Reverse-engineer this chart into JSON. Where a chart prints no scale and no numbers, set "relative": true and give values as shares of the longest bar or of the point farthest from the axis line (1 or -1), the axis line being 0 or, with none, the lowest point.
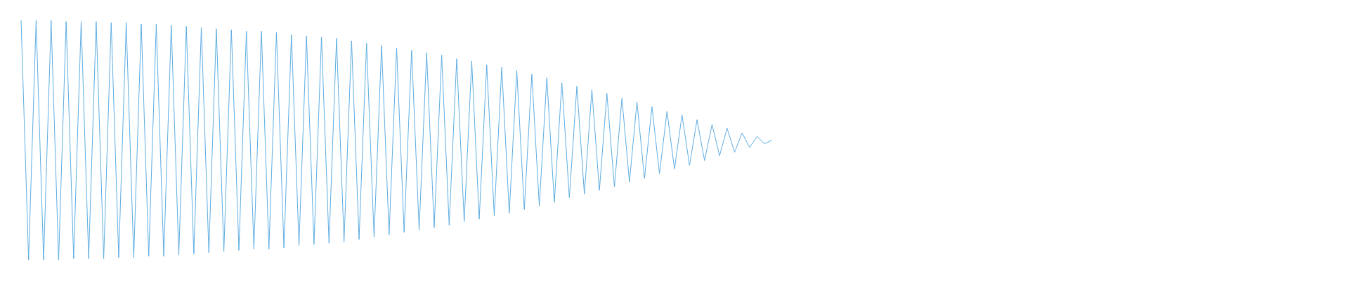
{
  "chart_data": {
    "type": "line",
    "relative": true,
    "color": "#5dade2",
    "categories": [
      null,
      null,
      null,
      null,
      null,
      null,
      null,
      null,
      null,
      null,
      null,
      null,
      null,
      null,
      null,
      null,
      null,
      null,
      null,
      null,
      null,
      null,
      null,
      null,
      null,
      null,
      null,
      null,
      null,
      null,
      null,
      null,
      null,
      null,
      null,
      null,
      null,
      null,
      null,
      null,
      null,
      null,
      null,
      null,
      null,
      null,
      null,
      null,
      null,
      null,
      null,
      null,
      null,
      null,
      null,
      null,
      null,
      null,
      null,
      null,
      null,
      null,
      null,
      null,
      null,
      null,
      null,
      null,
      null,
      null,
      null,
      null,
      null,
      null,
      null,
      null,
      null,
      null,
      null,
      null,
      null,
      null,
      null,
      null,
      null,
      null,
      null,
      null,
      null,
      null,
      null,
      null,
      null,
      null,
      null,
      null,
      null,
      null,
      null,
      null,
      null,
      null,
      null,
      null,
      null,
      null,
      null,
      null,
      null,
      null,
      null,
      null,
      null,
      null,
      null,
      null,
      null,
      null,
      null,
      null,
      null,
      null,
      null,
      null,
      null,
      null,
      null,
      null,
      null,
      null,
      null,
      null,
      null,
      null,
      null,
      null,
      null,
      null,
      null,
      null,
      null,
      null,
      null,
      null,
      null,
      null,
      null,
      null,
      null,
      null,
      null,
      null,
      null,
      null,
      null,
      null,
      null,
      null,
      null,
      null,
      null,
      null,
      null,
      null,
      null,
      null,
      null,
      null,
      null,
      null,
      null,
      null,
      null,
      null,
      null
    ],
    "values": [
      1.0,
      0.0,
      1.0,
      0.0,
      1.0,
      0.0,
      0.995,
      0.005,
      0.995,
      0.005,
      0.995,
      0.005,
      0.99,
      0.01,
      0.99,
      0.01,
      0.985,
      0.015,
      0.985,
      0.015,
      0.98,
      0.02,
      0.975,
      0.025,
      0.97,
      0.03,
      0.965,
      0.035,
      0.96,
      0.04,
      0.955,
      0.045,
      0.955,
      0.045,
      0.95,
      0.05,
      0.94,
      0.06,
      0.935,
      0.065,
      0.93,
      0.07,
      0.925,
      0.075,
      0.915,
      0.085,
      0.905,
      0.095,
      0.895,
      0.105,
      0.885,
      0.115,
      0.875,
      0.125,
      0.865,
      0.135,
      0.855,
      0.145,
      0.84,
      0.16,
      0.83,
      0.17,
      0.815,
      0.185,
      0.805,
      0.195,
      0.79,
      0.21,
      0.775,
      0.225,
      0.76,
      0.24,
      0.74,
      0.26,
      0.725,
      0.275,
      0.71,
      0.29,
      0.695,
      0.305,
      0.675,
      0.325,
      0.66,
      0.34,
      0.64,
      0.36,
      0.62,
      0.38,
      0.605,
      0.395,
      0.585,
      0.415,
      0.565,
      0.435,
      0.55,
      0.45,
      0.53,
      0.47,
      0.515,
      0.485,
      0.5,
      null,
      null,
      null,
      null,
      null,
      null,
      null,
      null,
      null,
      null,
      null,
      null,
      null,
      null,
      null,
      null,
      null,
      null,
      null,
      null,
      null,
      null,
      null,
      null,
      null,
      null,
      null,
      null,
      null,
      null,
      null,
      null,
      null,
      null,
      null,
      null,
      null,
      null,
      null,
      null,
      null,
      null,
      null,
      null,
      null,
      null,
      null,
      null,
      null,
      null,
      null,
      null,
      null,
      null,
      null,
      null,
      null,
      null,
      null,
      null,
      null,
      null,
      null,
      null,
      null,
      null,
      null,
      null,
      null,
      null,
      null,
      null,
      null,
      null
    ]
  }
}
